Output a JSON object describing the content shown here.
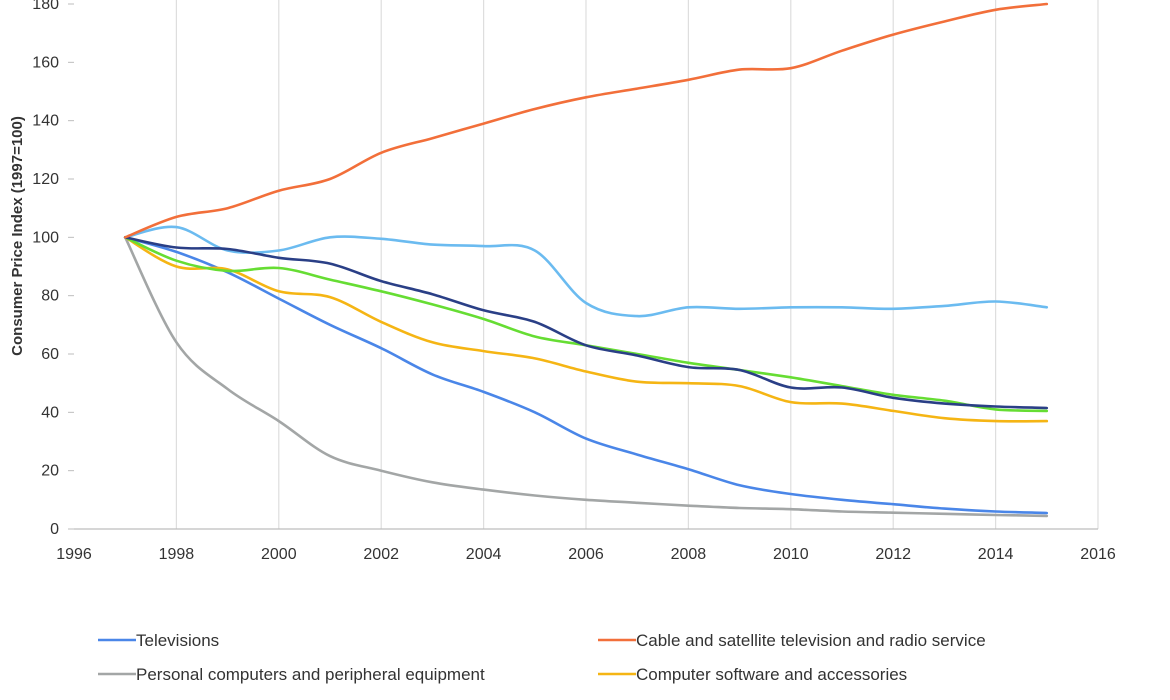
{
  "chart_data": {
    "type": "line",
    "title": "",
    "xlabel": "",
    "ylabel": "Consumer Price Index (1997=100)",
    "xlim": [
      1996,
      2016
    ],
    "ylim": [
      0,
      180
    ],
    "xticks": [
      1996,
      1998,
      2000,
      2002,
      2004,
      2006,
      2008,
      2010,
      2012,
      2014,
      2016
    ],
    "yticks": [
      0,
      20,
      40,
      60,
      80,
      100,
      120,
      140,
      160,
      180
    ],
    "grid": "vertical",
    "legend_position": "bottom",
    "x": [
      1997,
      1998,
      1999,
      2000,
      2001,
      2002,
      2003,
      2004,
      2005,
      2006,
      2007,
      2008,
      2009,
      2010,
      2011,
      2012,
      2013,
      2014,
      2015
    ],
    "series": [
      {
        "name": "Televisions",
        "color": "#4a86e8",
        "in_legend": true,
        "values": [
          100,
          95,
          88,
          79,
          70,
          62,
          53,
          47,
          40,
          31,
          25.5,
          20.5,
          15,
          12,
          10,
          8.5,
          7,
          6,
          5.5
        ]
      },
      {
        "name": "Cable and satellite television and radio service",
        "color": "#f26f3a",
        "in_legend": true,
        "values": [
          100,
          107,
          110,
          116,
          120,
          129,
          134,
          139,
          144,
          148,
          151,
          154,
          157.5,
          158,
          164,
          169.5,
          174,
          178,
          180
        ]
      },
      {
        "name": "Personal computers and peripheral equipment",
        "color": "#a3a6a6",
        "in_legend": true,
        "values": [
          100,
          64,
          48,
          37,
          25,
          20,
          16,
          13.5,
          11.5,
          10,
          9,
          8,
          7.2,
          6.8,
          6,
          5.6,
          5.2,
          4.8,
          4.5
        ]
      },
      {
        "name": "Computer software and accessories",
        "color": "#f5b514",
        "in_legend": true,
        "values": [
          100,
          90,
          89,
          81.5,
          79.5,
          71,
          64,
          61,
          58.5,
          54,
          50.5,
          50,
          49,
          43.5,
          43,
          40.5,
          38,
          37,
          37
        ]
      },
      {
        "name": "",
        "color": "#6bbbf0",
        "in_legend": false,
        "values": [
          100,
          103.5,
          95.5,
          95.5,
          100,
          99.5,
          97.5,
          97,
          95.5,
          77.5,
          73,
          76,
          75.5,
          76,
          76,
          75.5,
          76.5,
          78,
          76
        ]
      },
      {
        "name": "",
        "color": "#66dd33",
        "in_legend": false,
        "values": [
          100,
          92,
          88.5,
          89.5,
          85.5,
          81.5,
          77,
          72,
          66,
          63,
          60,
          57,
          54.5,
          52,
          49,
          46,
          44,
          41,
          40.5
        ]
      },
      {
        "name": "",
        "color": "#2a3f86",
        "in_legend": false,
        "values": [
          100,
          96.5,
          96,
          93,
          91,
          85,
          80.5,
          75,
          71,
          63,
          59.5,
          55.5,
          54.5,
          48.5,
          48.5,
          45,
          43,
          42,
          41.5
        ]
      }
    ]
  }
}
